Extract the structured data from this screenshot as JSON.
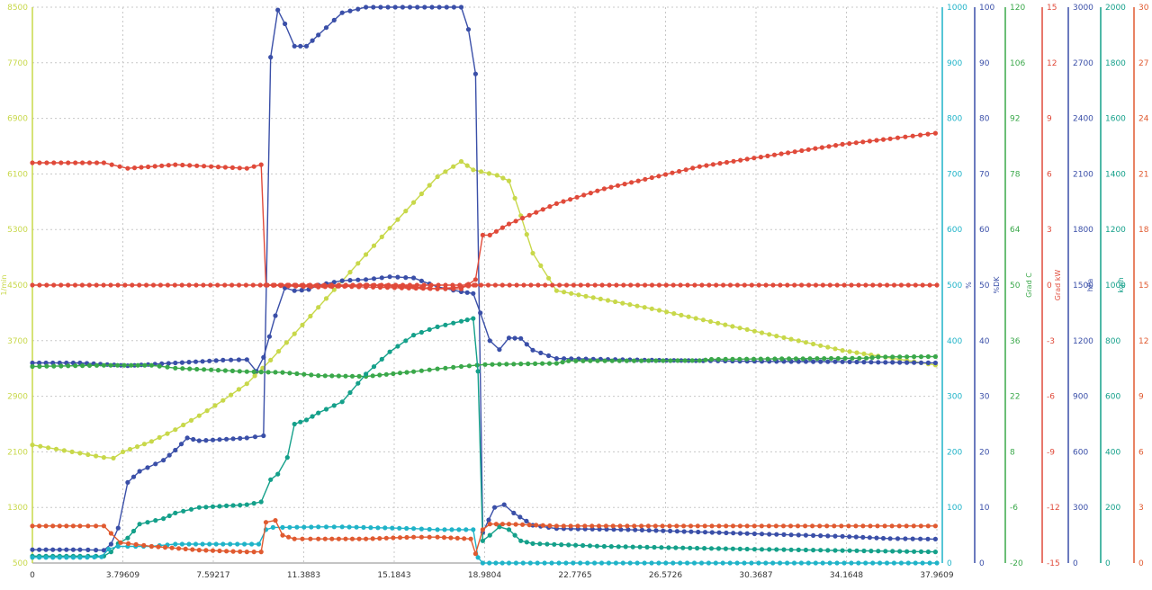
{
  "chart_data": {
    "type": "line",
    "grid": true,
    "x_axis": {
      "range": [
        0,
        37.9609
      ],
      "tick_labels": [
        "0",
        "3.79609",
        "7.59217",
        "11.3883",
        "15.1843",
        "18.9804",
        "22.7765",
        "26.5726",
        "30.3687",
        "34.1648",
        "37.9609"
      ]
    },
    "left_axis": {
      "label": "1/min",
      "color": "#c8d84a",
      "range": [
        500,
        8500
      ],
      "tick_labels": [
        "500",
        "1300",
        "2100",
        "2900",
        "3700",
        "4500",
        "5300",
        "6100",
        "6900",
        "7700",
        "8500"
      ]
    },
    "right_axes": [
      {
        "label": "",
        "color": "#1fb3c8",
        "range": [
          0,
          1000
        ],
        "tick_labels": [
          "0",
          "100",
          "200",
          "300",
          "400",
          "500",
          "600",
          "700",
          "800",
          "900",
          "1000"
        ]
      },
      {
        "label": "%",
        "color": "#3a4fa8",
        "range": [
          0,
          100
        ],
        "tick_labels": [
          "0",
          "10",
          "20",
          "30",
          "40",
          "50",
          "60",
          "70",
          "80",
          "90",
          "100"
        ]
      },
      {
        "label": "%DK",
        "color": "#3a4fa8",
        "range": [
          0,
          100
        ],
        "tick_labels": []
      },
      {
        "label": "Grad C",
        "color": "#3aa84a",
        "range": [
          -20,
          120
        ],
        "tick_labels": [
          "-20",
          "-6",
          "8",
          "22",
          "36",
          "50",
          "64",
          "78",
          "92",
          "106",
          "120"
        ]
      },
      {
        "label": "Grad kW",
        "color": "#e04a3a",
        "range": [
          -15,
          15
        ],
        "tick_labels": [
          "-15",
          "-12",
          "-9",
          "-6",
          "-3",
          "0",
          "3",
          "6",
          "9",
          "12",
          "15"
        ]
      },
      {
        "label": "hPa",
        "color": "#3a4fa8",
        "range": [
          0,
          3000
        ],
        "tick_labels": [
          "0",
          "300",
          "600",
          "900",
          "1200",
          "1500",
          "1800",
          "2100",
          "2400",
          "2700",
          "3000"
        ]
      },
      {
        "label": "kg/h",
        "color": "#14a08a",
        "range": [
          0,
          2000
        ],
        "tick_labels": [
          "0",
          "200",
          "400",
          "600",
          "800",
          "1000",
          "1200",
          "1400",
          "1600",
          "1800",
          "2000"
        ]
      },
      {
        "label": "",
        "color": "#e05a30",
        "range": [
          0,
          30
        ],
        "tick_labels": [
          "0",
          "3",
          "6",
          "9",
          "12",
          "15",
          "18",
          "21",
          "24",
          "27",
          "30"
        ]
      }
    ],
    "series": [
      {
        "color": "#c8d84a",
        "axis": "1/min",
        "points": [
          [
            0,
            2200
          ],
          [
            1,
            2140
          ],
          [
            2,
            2080
          ],
          [
            3,
            2020
          ],
          [
            3.4,
            2010
          ],
          [
            3.8,
            2100
          ],
          [
            5,
            2250
          ],
          [
            6,
            2420
          ],
          [
            7,
            2620
          ],
          [
            8,
            2840
          ],
          [
            9,
            3080
          ],
          [
            10,
            3420
          ],
          [
            11,
            3800
          ],
          [
            12,
            4180
          ],
          [
            13,
            4560
          ],
          [
            14,
            4940
          ],
          [
            15,
            5320
          ],
          [
            16,
            5690
          ],
          [
            17,
            6060
          ],
          [
            18,
            6280
          ],
          [
            18.5,
            6160
          ],
          [
            19.5,
            6080
          ],
          [
            20,
            6000
          ],
          [
            20.5,
            5500
          ],
          [
            21,
            4960
          ],
          [
            22,
            4420
          ],
          [
            26,
            4160
          ],
          [
            30,
            3860
          ],
          [
            34,
            3560
          ],
          [
            37.9,
            3350
          ]
        ]
      },
      {
        "color": "#3a4fa8",
        "axis": "%",
        "points": [
          [
            0,
            36
          ],
          [
            2,
            36
          ],
          [
            4,
            35.5
          ],
          [
            6,
            36
          ],
          [
            8,
            36.5
          ],
          [
            9,
            36.6
          ],
          [
            9.4,
            34.5
          ],
          [
            9.7,
            37
          ],
          [
            10.2,
            44.5
          ],
          [
            10.6,
            49.5
          ],
          [
            11,
            49
          ],
          [
            11.6,
            49.2
          ],
          [
            12,
            50
          ],
          [
            13,
            50.8
          ],
          [
            14,
            51
          ],
          [
            15,
            51.5
          ],
          [
            16,
            51.3
          ],
          [
            17,
            49.7
          ],
          [
            18,
            48.8
          ],
          [
            18.5,
            48.5
          ],
          [
            18.8,
            45
          ],
          [
            19.2,
            40
          ],
          [
            19.6,
            38.4
          ],
          [
            20,
            40.5
          ],
          [
            20.5,
            40.4
          ],
          [
            21,
            38.3
          ],
          [
            22,
            36.8
          ],
          [
            26,
            36.5
          ],
          [
            30,
            36.3
          ],
          [
            34,
            36.2
          ],
          [
            37.9,
            36
          ]
        ]
      },
      {
        "color": "#3a4fa8",
        "axis": "%DK",
        "points": [
          [
            0,
            2.4
          ],
          [
            2,
            2.4
          ],
          [
            3,
            2.3
          ],
          [
            3.3,
            3.4
          ],
          [
            3.6,
            6.3
          ],
          [
            4,
            14.5
          ],
          [
            4.5,
            16.5
          ],
          [
            5.5,
            18.5
          ],
          [
            6,
            20.3
          ],
          [
            6.5,
            22.5
          ],
          [
            7,
            22
          ],
          [
            9,
            22.5
          ],
          [
            9.7,
            22.9
          ],
          [
            10,
            91
          ],
          [
            10.3,
            99.5
          ],
          [
            10.6,
            97
          ],
          [
            11,
            93
          ],
          [
            11.5,
            93
          ],
          [
            12,
            95
          ],
          [
            13,
            99
          ],
          [
            14,
            100
          ],
          [
            18,
            100
          ],
          [
            18.3,
            96
          ],
          [
            18.6,
            88
          ],
          [
            18.9,
            5.5
          ],
          [
            19.4,
            10
          ],
          [
            19.8,
            10.5
          ],
          [
            20.2,
            9
          ],
          [
            21,
            6.8
          ],
          [
            22,
            6.2
          ],
          [
            25,
            6
          ],
          [
            30,
            5.3
          ],
          [
            34,
            4.8
          ],
          [
            36,
            4.4
          ],
          [
            37.9,
            4.3
          ]
        ]
      },
      {
        "color": "#3aa84a",
        "axis": "Grad C",
        "points": [
          [
            0,
            29.5
          ],
          [
            3,
            29.8
          ],
          [
            5,
            29.8
          ],
          [
            6,
            29.1
          ],
          [
            9,
            28.2
          ],
          [
            10.5,
            28
          ],
          [
            12,
            27.2
          ],
          [
            14,
            27
          ],
          [
            16,
            28.2
          ],
          [
            17,
            28.9
          ],
          [
            18,
            29.5
          ],
          [
            19,
            30
          ],
          [
            22,
            30.3
          ],
          [
            22.5,
            30.9
          ],
          [
            28,
            31
          ],
          [
            28.5,
            31.3
          ],
          [
            35,
            31.6
          ],
          [
            35.5,
            31.9
          ],
          [
            37.9,
            32
          ]
        ]
      },
      {
        "color": "#e04a3a",
        "axis": "Grad kW",
        "points": [
          [
            0,
            6.6
          ],
          [
            3,
            6.6
          ],
          [
            4,
            6.3
          ],
          [
            6,
            6.5
          ],
          [
            9,
            6.3
          ],
          [
            9.6,
            6.5
          ],
          [
            9.8,
            0
          ],
          [
            11,
            0
          ],
          [
            17,
            -0.2
          ],
          [
            18,
            -0.2
          ],
          [
            18.6,
            0.3
          ],
          [
            18.9,
            2.7
          ],
          [
            19.2,
            2.7
          ],
          [
            20,
            3.3
          ],
          [
            22,
            4.4
          ],
          [
            24,
            5.2
          ],
          [
            26,
            5.8
          ],
          [
            28,
            6.4
          ],
          [
            30,
            6.8
          ],
          [
            32,
            7.2
          ],
          [
            34,
            7.6
          ],
          [
            36,
            7.9
          ],
          [
            37.9,
            8.2
          ]
        ]
      },
      {
        "color": "#e04a3a",
        "axis": "Grad kW",
        "points": [
          [
            0,
            0
          ],
          [
            37.9609,
            0
          ]
        ]
      },
      {
        "color": "#e04a3a",
        "axis": "hPa",
        "points": [
          [
            9.8,
            1500
          ],
          [
            12,
            1490
          ],
          [
            14,
            1500
          ],
          [
            16,
            1490
          ],
          [
            17,
            1480
          ],
          [
            18,
            1490
          ],
          [
            18.6,
            1500
          ]
        ]
      },
      {
        "color": "#14a08a",
        "axis": "kg/h",
        "points": [
          [
            0,
            25
          ],
          [
            2,
            25
          ],
          [
            3,
            25
          ],
          [
            3.3,
            40
          ],
          [
            3.6,
            70
          ],
          [
            4,
            90
          ],
          [
            4.5,
            140
          ],
          [
            5.5,
            160
          ],
          [
            6,
            180
          ],
          [
            7,
            200
          ],
          [
            9,
            210
          ],
          [
            9.6,
            220
          ],
          [
            10,
            300
          ],
          [
            10.3,
            320
          ],
          [
            10.7,
            380
          ],
          [
            11,
            500
          ],
          [
            11.5,
            515
          ],
          [
            12,
            540
          ],
          [
            13,
            580
          ],
          [
            14,
            680
          ],
          [
            15,
            760
          ],
          [
            16,
            820
          ],
          [
            17,
            850
          ],
          [
            18,
            870
          ],
          [
            18.5,
            880
          ],
          [
            18.7,
            690
          ],
          [
            18.9,
            80
          ],
          [
            19.2,
            100
          ],
          [
            19.6,
            130
          ],
          [
            20,
            120
          ],
          [
            20.5,
            80
          ],
          [
            21,
            70
          ],
          [
            24,
            60
          ],
          [
            30,
            50
          ],
          [
            34,
            45
          ],
          [
            37.9,
            40
          ]
        ]
      },
      {
        "color": "#1fb3c8",
        "axis": "1000",
        "points": [
          [
            0,
            10
          ],
          [
            2,
            10
          ],
          [
            2.9,
            11
          ],
          [
            3.2,
            25
          ],
          [
            3.6,
            30
          ],
          [
            4,
            30
          ],
          [
            5,
            30
          ],
          [
            6,
            34
          ],
          [
            8,
            34
          ],
          [
            9.5,
            34
          ],
          [
            9.8,
            60
          ],
          [
            10.1,
            64
          ],
          [
            10.5,
            64
          ],
          [
            12,
            65
          ],
          [
            13,
            65
          ],
          [
            16,
            62
          ],
          [
            17,
            60
          ],
          [
            18.5,
            60
          ],
          [
            18.7,
            10
          ],
          [
            18.9,
            0
          ],
          [
            20,
            0
          ],
          [
            37.9609,
            0
          ]
        ]
      },
      {
        "color": "#e05a30",
        "axis": "30",
        "points": [
          [
            0,
            2
          ],
          [
            2,
            2
          ],
          [
            3,
            2
          ],
          [
            3.3,
            1.6
          ],
          [
            3.7,
            1.1
          ],
          [
            5,
            0.9
          ],
          [
            7,
            0.7
          ],
          [
            9,
            0.6
          ],
          [
            9.6,
            0.6
          ],
          [
            9.8,
            2.2
          ],
          [
            10.2,
            2.3
          ],
          [
            10.5,
            1.5
          ],
          [
            11,
            1.3
          ],
          [
            12,
            1.3
          ],
          [
            14,
            1.3
          ],
          [
            16,
            1.4
          ],
          [
            17,
            1.4
          ],
          [
            18.4,
            1.3
          ],
          [
            18.6,
            0.5
          ],
          [
            18.9,
            1.8
          ],
          [
            19.2,
            2.1
          ],
          [
            20,
            2.1
          ],
          [
            22,
            2
          ],
          [
            30,
            2
          ],
          [
            37.9,
            2
          ]
        ]
      }
    ]
  }
}
